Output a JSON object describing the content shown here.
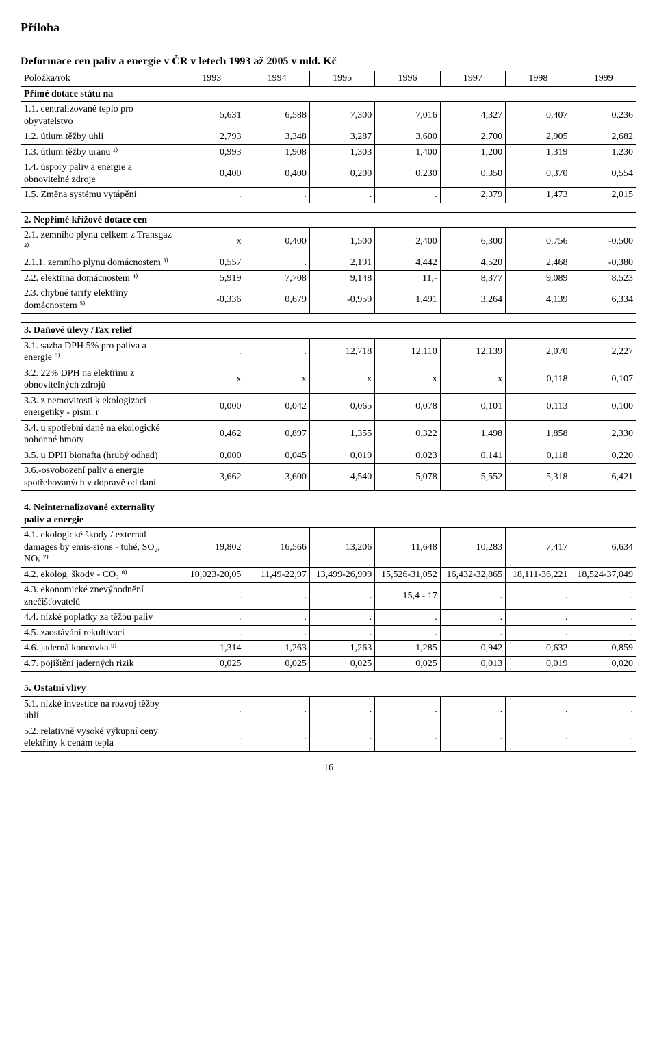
{
  "heading": "Příloha",
  "title": "Deformace cen paliv a energie v ČR v letech 1993 až 2005 v mld. Kč",
  "page_number": "16",
  "header_label": "Položka/rok",
  "years": [
    "1993",
    "1994",
    "1995",
    "1996",
    "1997",
    "1998",
    "1999"
  ],
  "sections": [
    {
      "header": "Přímé dotace státu na",
      "rows": [
        {
          "label": "1.1. centralizované teplo pro obyvatelstvo",
          "cells": [
            "5,631",
            "6,588",
            "7,300",
            "7,016",
            "4,327",
            "0,407",
            "0,236"
          ]
        },
        {
          "label": "1.2. útlum těžby uhlí",
          "cells": [
            "2,793",
            "3,348",
            "3,287",
            "3,600",
            "2,700",
            "2,905",
            "2,682"
          ]
        },
        {
          "label": "1.3. útlum těžby uranu ¹⁾",
          "cells": [
            "0,993",
            "1,908",
            "1,303",
            "1,400",
            "1,200",
            "1,319",
            "1,230"
          ]
        },
        {
          "label": "1.4. úspory paliv a energie a obnovitelné zdroje",
          "cells": [
            "0,400",
            "0,400",
            "0,200",
            "0,230",
            "0,350",
            "0,370",
            "0,554"
          ]
        },
        {
          "label": "1.5. Změna systému vytápění",
          "cells": [
            ".",
            ".",
            ".",
            ".",
            "2,379",
            "1,473",
            "2,015"
          ]
        }
      ]
    },
    {
      "header": "2. Nepřímé křížové dotace cen",
      "rows": [
        {
          "label": "2.1. zemního plynu celkem z Transgaz ²⁾",
          "cells": [
            "x",
            "0,400",
            "1,500",
            "2,400",
            "6,300",
            "0,756",
            "-0,500"
          ]
        },
        {
          "label": "2.1.1. zemního plynu domácnostem ³⁾",
          "cells": [
            "0,557",
            ".",
            "2,191",
            "4,442",
            "4,520",
            "2,468",
            "-0,380"
          ]
        },
        {
          "label": "2.2. elektřina domácnostem ⁴⁾",
          "cells": [
            "5,919",
            "7,708",
            "9,148",
            "11,-",
            "8,377",
            "9,089",
            "8,523"
          ]
        },
        {
          "label": "2.3. chybné tarify elektřiny domácnostem ⁵⁾",
          "cells": [
            "-0,336",
            "0,679",
            "-0,959",
            "1,491",
            "3,264",
            "4,139",
            "6,334"
          ]
        }
      ]
    },
    {
      "header": "3. Daňové úlevy /Tax relief",
      "rows": [
        {
          "label": "3.1. sazba DPH 5% pro paliva a energie ⁶⁾",
          "cells": [
            ".",
            ".",
            "12,718",
            "12,110",
            "12,139",
            "2,070",
            "2,227"
          ]
        },
        {
          "label": "3.2. 22% DPH na elektřinu z obnovitelných zdrojů",
          "cells": [
            "x",
            "x",
            "x",
            "x",
            "x",
            "0,118",
            "0,107"
          ]
        },
        {
          "label": "3.3. z nemovitosti k ekologizaci energetiky - písm. r",
          "cells": [
            "0,000",
            "0,042",
            "0,065",
            "0,078",
            "0,101",
            "0,113",
            "0,100"
          ]
        },
        {
          "label": "3.4. u spotřební daně na ekologické pohonné hmoty",
          "cells": [
            "0,462",
            "0,897",
            "1,355",
            "0,322",
            "1,498",
            "1,858",
            "2,330"
          ]
        },
        {
          "label": "3.5. u DPH bionafta (hrubý odhad)",
          "cells": [
            "0,000",
            "0,045",
            "0,019",
            "0,023",
            "0,141",
            "0,118",
            "0,220"
          ]
        },
        {
          "label": "3.6.-osvobození paliv a energie spotřebovaných v dopravě od daní",
          "cells": [
            "3,662",
            "3,600",
            "4,540",
            "5,078",
            "5,552",
            "5,318",
            "6,421"
          ]
        }
      ]
    },
    {
      "header": "4. Neinternalizované externality paliv a energie",
      "rows": [
        {
          "label": "4.1. ekologické škody / external damages by emis-sions - tuhé, SO₂, NOₓ ⁷⁾",
          "cells": [
            "19,802",
            "16,566",
            "13,206",
            "11,648",
            "10,283",
            "7,417",
            "6,634"
          ]
        },
        {
          "label": "4.2. ekolog. škody - CO₂ ⁸⁾",
          "cells": [
            "10,023-20,05",
            "11,49-22,97",
            "13,499-26,999",
            "15,526-31,052",
            "16,432-32,865",
            "18,111-36,221",
            "18,524-37,049"
          ]
        },
        {
          "label": "4.3. ekonomické znevýhodnění znečišťovatelů",
          "cells": [
            ".",
            ".",
            ".",
            "15,4 - 17",
            ".",
            ".",
            "."
          ]
        },
        {
          "label": "4.4. nízké poplatky za těžbu paliv",
          "cells": [
            ".",
            ".",
            ".",
            ".",
            ".",
            ".",
            "."
          ]
        },
        {
          "label": "4.5. zaostávání rekultivací",
          "cells": [
            ".",
            ".",
            ".",
            ".",
            ".",
            ".",
            "."
          ]
        },
        {
          "label": "4.6. jaderná koncovka ⁹⁾",
          "cells": [
            "1,314",
            "1,263",
            "1,263",
            "1,285",
            "0,942",
            "0,632",
            "0,859"
          ]
        },
        {
          "label": "4.7. pojištění jaderných rizik",
          "cells": [
            "0,025",
            "0,025",
            "0,025",
            "0,025",
            "0,013",
            "0,019",
            "0,020"
          ]
        }
      ]
    },
    {
      "header": "5. Ostatní vlivy",
      "rows": [
        {
          "label": "5.1. nízké investice na rozvoj těžby uhlí",
          "cells": [
            ".",
            ".",
            ".",
            ".",
            ".",
            ".",
            "."
          ]
        },
        {
          "label": "5.2. relativně vysoké výkupní ceny elektřiny k cenám tepla",
          "cells": [
            ".",
            ".",
            ".",
            ".",
            ".",
            ".",
            "."
          ]
        }
      ]
    }
  ]
}
